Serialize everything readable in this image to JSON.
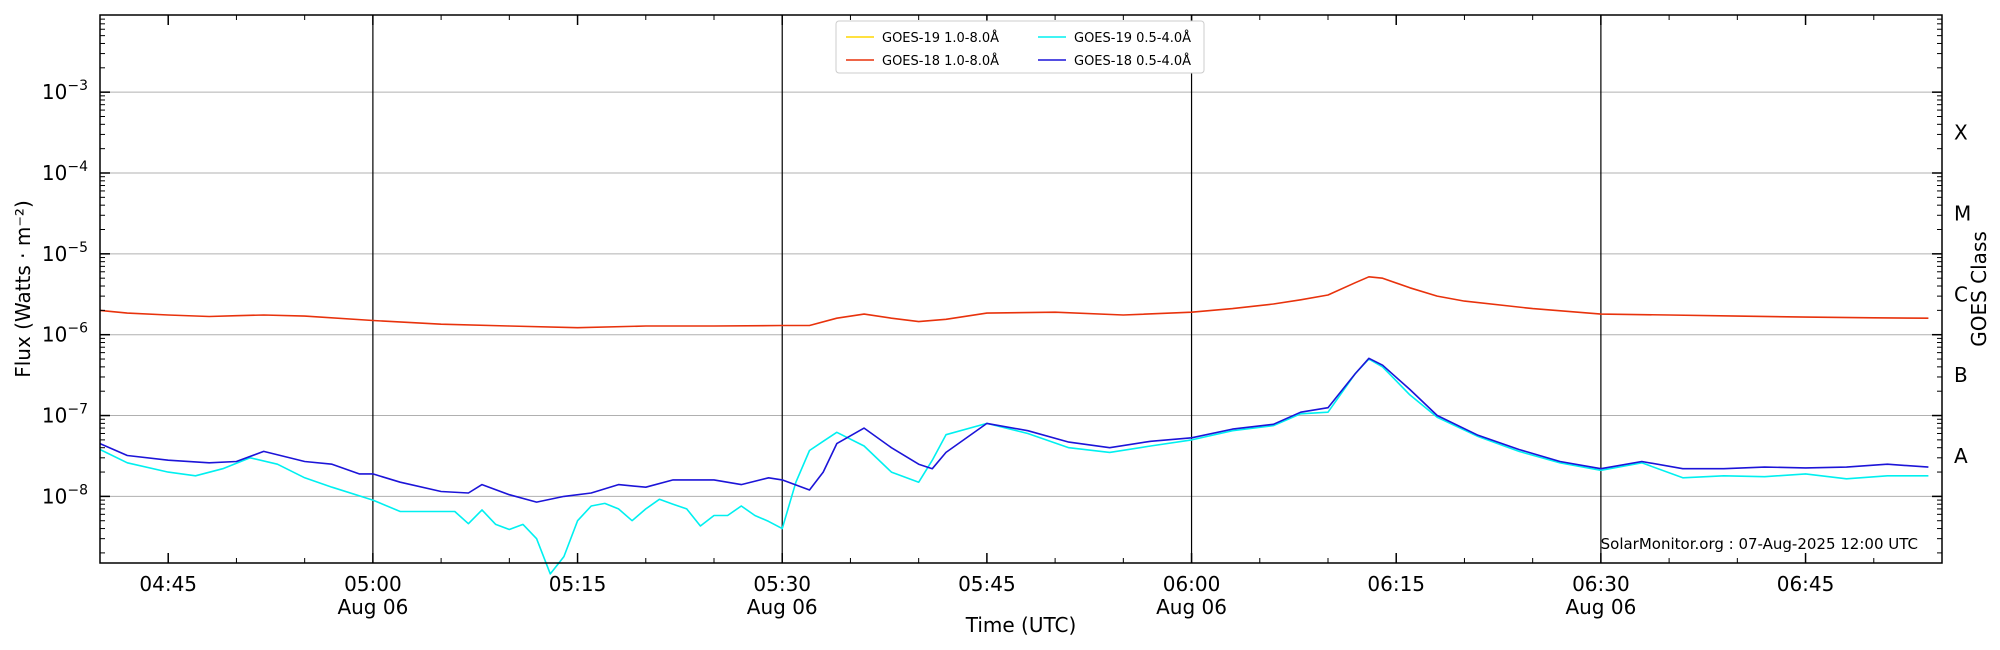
{
  "chart_data": {
    "type": "line",
    "title": "",
    "xlabel": "Time (UTC)",
    "ylabel": "Flux (Watts · m⁻²)",
    "y2label": "GOES Class",
    "yscale": "log",
    "ylim": [
      1.5e-09,
      0.009
    ],
    "xlim": [
      "04:40",
      "06:55"
    ],
    "grid": "horizontal at decades",
    "legend": "top-center",
    "credit": "SolarMonitor.org : 07-Aug-2025 12:00 UTC",
    "x_ticks": [
      {
        "time": "04:45",
        "label": "04:45",
        "date": ""
      },
      {
        "time": "05:00",
        "label": "05:00",
        "date": "Aug 06"
      },
      {
        "time": "05:15",
        "label": "05:15",
        "date": ""
      },
      {
        "time": "05:30",
        "label": "05:30",
        "date": "Aug 06"
      },
      {
        "time": "05:45",
        "label": "05:45",
        "date": ""
      },
      {
        "time": "06:00",
        "label": "06:00",
        "date": "Aug 06"
      },
      {
        "time": "06:15",
        "label": "06:15",
        "date": ""
      },
      {
        "time": "06:30",
        "label": "06:30",
        "date": "Aug 06"
      },
      {
        "time": "06:45",
        "label": "06:45",
        "date": ""
      }
    ],
    "vlines": [
      "05:00",
      "05:30",
      "06:00",
      "06:30"
    ],
    "y_ticks": [
      {
        "value": 1e-08,
        "base": "10",
        "exp": "−8"
      },
      {
        "value": 1e-07,
        "base": "10",
        "exp": "−7"
      },
      {
        "value": 1e-06,
        "base": "10",
        "exp": "−6"
      },
      {
        "value": 1e-05,
        "base": "10",
        "exp": "−5"
      },
      {
        "value": 0.0001,
        "base": "10",
        "exp": "−4"
      },
      {
        "value": 0.001,
        "base": "10",
        "exp": "−3"
      }
    ],
    "goes_classes": [
      {
        "label": "A",
        "value": 3.16e-08
      },
      {
        "label": "B",
        "value": 3.16e-07
      },
      {
        "label": "C",
        "value": 3.16e-06
      },
      {
        "label": "M",
        "value": 3.16e-05
      },
      {
        "label": "X",
        "value": 0.000316
      }
    ],
    "series": [
      {
        "name": "GOES-19 1.0-8.0Å",
        "color": "#ffd700",
        "x": [],
        "y": []
      },
      {
        "name": "GOES-18 1.0-8.0Å",
        "color": "#e8320c",
        "x": [
          "04:40",
          "04:42",
          "04:45",
          "04:48",
          "04:50",
          "04:52",
          "04:55",
          "05:00",
          "05:05",
          "05:10",
          "05:15",
          "05:20",
          "05:25",
          "05:30",
          "05:32",
          "05:34",
          "05:36",
          "05:38",
          "05:40",
          "05:42",
          "05:45",
          "05:50",
          "05:55",
          "06:00",
          "06:03",
          "06:06",
          "06:08",
          "06:10",
          "06:12",
          "06:13",
          "06:14",
          "06:16",
          "06:18",
          "06:20",
          "06:25",
          "06:30",
          "06:35",
          "06:40",
          "06:45",
          "06:50",
          "06:54"
        ],
        "y": [
          2e-06,
          1.85e-06,
          1.75e-06,
          1.68e-06,
          1.72e-06,
          1.75e-06,
          1.7e-06,
          1.5e-06,
          1.35e-06,
          1.28e-06,
          1.22e-06,
          1.28e-06,
          1.28e-06,
          1.3e-06,
          1.3e-06,
          1.6e-06,
          1.8e-06,
          1.6e-06,
          1.45e-06,
          1.55e-06,
          1.85e-06,
          1.9e-06,
          1.75e-06,
          1.9e-06,
          2.1e-06,
          2.4e-06,
          2.7e-06,
          3.1e-06,
          4.4e-06,
          5.2e-06,
          5e-06,
          3.8e-06,
          3e-06,
          2.6e-06,
          2.1e-06,
          1.8e-06,
          1.75e-06,
          1.7e-06,
          1.65e-06,
          1.62e-06,
          1.6e-06
        ]
      },
      {
        "name": "GOES-19 0.5-4.0Å",
        "color": "#00f0f0",
        "x": [
          "04:40",
          "04:42",
          "04:45",
          "04:47",
          "04:49",
          "04:51",
          "04:53",
          "04:55",
          "04:57",
          "05:00",
          "05:02",
          "05:04",
          "05:06",
          "05:07",
          "05:08",
          "05:09",
          "05:10",
          "05:11",
          "05:12",
          "05:13",
          "05:14",
          "05:15",
          "05:16",
          "05:17",
          "05:18",
          "05:19",
          "05:20",
          "05:21",
          "05:22",
          "05:23",
          "05:24",
          "05:25",
          "05:26",
          "05:27",
          "05:28",
          "05:29",
          "05:30",
          "05:31",
          "05:32",
          "05:33",
          "05:34",
          "05:36",
          "05:38",
          "05:40",
          "05:41",
          "05:42",
          "05:45",
          "05:48",
          "05:51",
          "05:54",
          "05:57",
          "06:00",
          "06:03",
          "06:06",
          "06:08",
          "06:10",
          "06:12",
          "06:13",
          "06:14",
          "06:16",
          "06:18",
          "06:21",
          "06:24",
          "06:27",
          "06:30",
          "06:33",
          "06:36",
          "06:39",
          "06:42",
          "06:45",
          "06:48",
          "06:51",
          "06:54"
        ],
        "y": [
          3.8e-08,
          2.6e-08,
          2e-08,
          1.8e-08,
          2.2e-08,
          3e-08,
          2.5e-08,
          1.7e-08,
          1.3e-08,
          9e-09,
          6.5e-09,
          6.5e-09,
          6.5e-09,
          4.6e-09,
          6.8e-09,
          4.5e-09,
          3.9e-09,
          4.5e-09,
          3e-09,
          1.1e-09,
          1.8e-09,
          5e-09,
          7.6e-09,
          8.2e-09,
          7e-09,
          5e-09,
          7e-09,
          9.2e-09,
          8e-09,
          7e-09,
          4.3e-09,
          5.8e-09,
          5.8e-09,
          7.6e-09,
          5.8e-09,
          4.9e-09,
          4e-09,
          1.5e-08,
          3.7e-08,
          4.8e-08,
          6.2e-08,
          4.2e-08,
          2e-08,
          1.5e-08,
          2.8e-08,
          5.8e-08,
          8e-08,
          6e-08,
          4e-08,
          3.5e-08,
          4.2e-08,
          5e-08,
          6.5e-08,
          7.5e-08,
          1.05e-07,
          1.1e-07,
          3.3e-07,
          5e-07,
          4e-07,
          1.8e-07,
          9.5e-08,
          5.5e-08,
          3.6e-08,
          2.6e-08,
          2.1e-08,
          2.6e-08,
          1.7e-08,
          1.8e-08,
          1.75e-08,
          1.9e-08,
          1.65e-08,
          1.8e-08,
          1.8e-08
        ]
      },
      {
        "name": "GOES-18 0.5-4.0Å",
        "color": "#1c14d8",
        "x": [
          "04:40",
          "04:42",
          "04:45",
          "04:48",
          "04:50",
          "04:52",
          "04:55",
          "04:57",
          "04:59",
          "05:00",
          "05:02",
          "05:05",
          "05:07",
          "05:08",
          "05:10",
          "05:12",
          "05:14",
          "05:16",
          "05:18",
          "05:20",
          "05:22",
          "05:25",
          "05:27",
          "05:29",
          "05:30",
          "05:32",
          "05:33",
          "05:34",
          "05:36",
          "05:38",
          "05:40",
          "05:41",
          "05:42",
          "05:45",
          "05:48",
          "05:51",
          "05:54",
          "05:57",
          "06:00",
          "06:03",
          "06:06",
          "06:08",
          "06:10",
          "06:12",
          "06:13",
          "06:14",
          "06:16",
          "06:18",
          "06:21",
          "06:24",
          "06:27",
          "06:30",
          "06:33",
          "06:36",
          "06:39",
          "06:42",
          "06:45",
          "06:48",
          "06:51",
          "06:54"
        ],
        "y": [
          4.5e-08,
          3.2e-08,
          2.8e-08,
          2.6e-08,
          2.7e-08,
          3.6e-08,
          2.7e-08,
          2.5e-08,
          1.9e-08,
          1.9e-08,
          1.5e-08,
          1.15e-08,
          1.1e-08,
          1.4e-08,
          1.05e-08,
          8.5e-09,
          1e-08,
          1.1e-08,
          1.4e-08,
          1.3e-08,
          1.6e-08,
          1.6e-08,
          1.4e-08,
          1.7e-08,
          1.6e-08,
          1.2e-08,
          2e-08,
          4.5e-08,
          7e-08,
          4e-08,
          2.5e-08,
          2.2e-08,
          3.5e-08,
          8e-08,
          6.5e-08,
          4.7e-08,
          4e-08,
          4.8e-08,
          5.3e-08,
          6.8e-08,
          7.8e-08,
          1.1e-07,
          1.25e-07,
          3.3e-07,
          5.1e-07,
          4.2e-07,
          2.1e-07,
          1e-07,
          5.7e-08,
          3.8e-08,
          2.7e-08,
          2.2e-08,
          2.7e-08,
          2.2e-08,
          2.2e-08,
          2.3e-08,
          2.25e-08,
          2.3e-08,
          2.5e-08,
          2.3e-08
        ]
      }
    ]
  }
}
